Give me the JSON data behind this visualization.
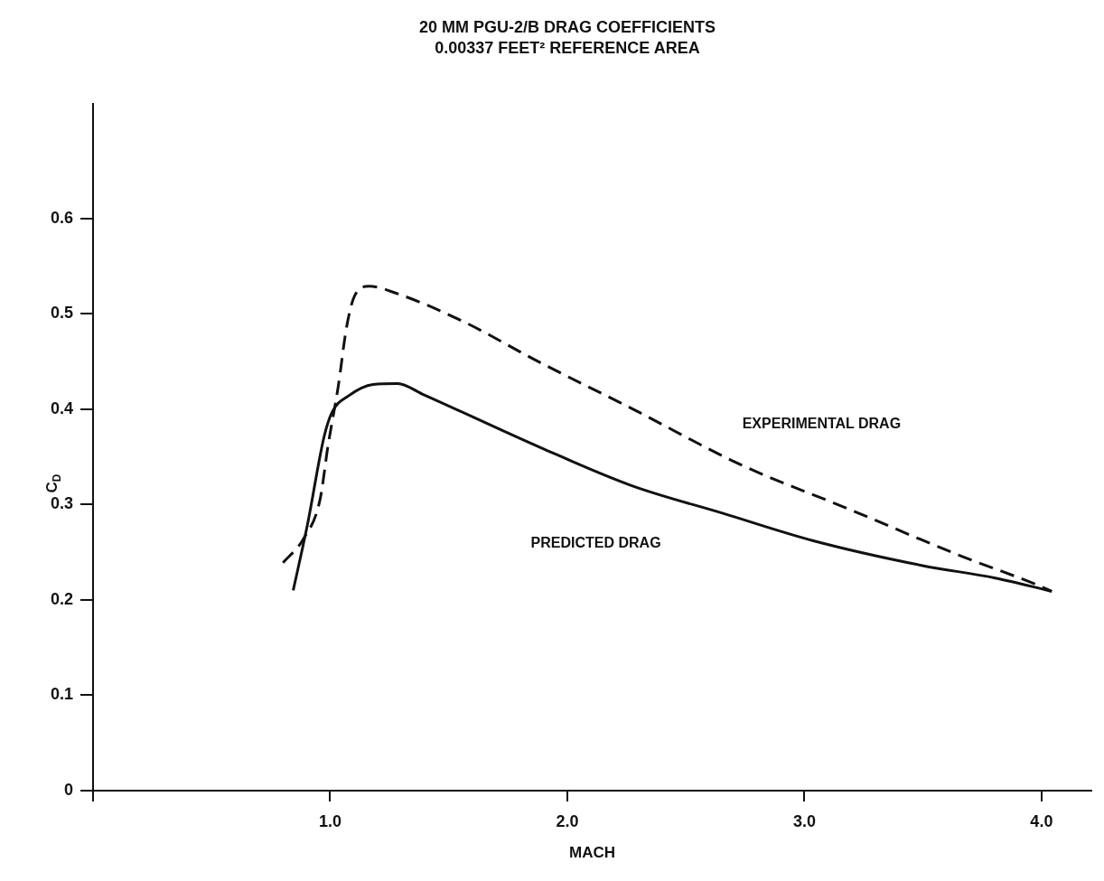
{
  "chart_data": {
    "type": "line",
    "title": "20 MM PGU-2/B DRAG COEFFICIENTS",
    "subtitle": "0.00337 FEET² REFERENCE AREA",
    "xlabel": "MACH",
    "ylabel": "C$_{D}$",
    "xlim": [
      0,
      4.21
    ],
    "ylim": [
      0,
      0.72
    ],
    "xticks": [
      {
        "value": 0,
        "label": null
      },
      {
        "value": 1,
        "label": "1.0"
      },
      {
        "value": 2,
        "label": "2.0"
      },
      {
        "value": 3,
        "label": "3.0"
      },
      {
        "value": 4,
        "label": "4.0"
      }
    ],
    "yticks": [
      0,
      0.1,
      0.2,
      0.3,
      0.4,
      0.5,
      0.6
    ],
    "grid": false,
    "legend": false,
    "marker": "none",
    "series": [
      {
        "name": "PREDICTED DRAG",
        "color": "#111111",
        "line_style": "solid",
        "x": [
          0.844,
          0.905,
          0.974,
          1.008,
          1.077,
          1.181,
          1.285,
          1.388,
          1.885,
          2.27,
          2.654,
          3.038,
          3.498,
          3.805,
          4.043
        ],
        "values": [
          0.21,
          0.28,
          0.371,
          0.397,
          0.414,
          0.426,
          0.427,
          0.416,
          0.36,
          0.32,
          0.291,
          0.262,
          0.236,
          0.223,
          0.209
        ]
      },
      {
        "name": "EXPERIMENTAL DRAG",
        "color": "#111111",
        "line_style": "dashed",
        "x": [
          0.801,
          0.887,
          0.957,
          0.991,
          1.034,
          1.069,
          1.103,
          1.164,
          1.285,
          1.561,
          1.885,
          2.27,
          2.73,
          3.19,
          3.651,
          3.959,
          4.043
        ],
        "values": [
          0.239,
          0.264,
          0.305,
          0.362,
          0.424,
          0.486,
          0.519,
          0.529,
          0.521,
          0.492,
          0.449,
          0.401,
          0.342,
          0.295,
          0.247,
          0.218,
          0.209
        ]
      }
    ]
  }
}
